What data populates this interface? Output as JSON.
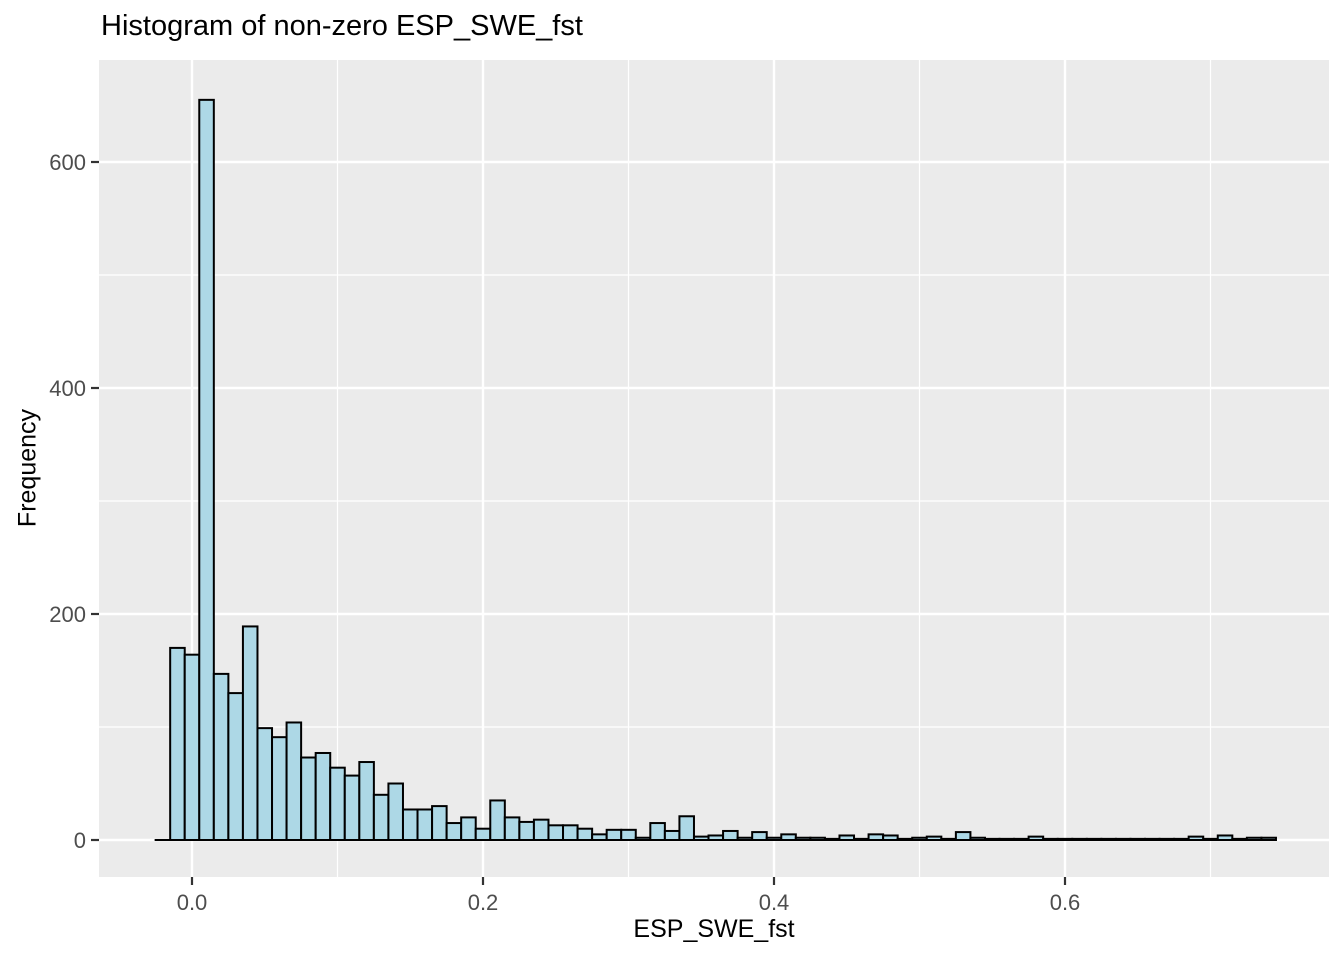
{
  "chart_data": {
    "type": "bar",
    "subtype": "histogram",
    "title": "Histogram of non-zero ESP_SWE_fst",
    "xlabel": "ESP_SWE_fst",
    "ylabel": "Frequency",
    "grid": "on",
    "legend": "none",
    "bin_width": 0.01,
    "bin_centers": [
      -0.02,
      -0.01,
      0.0,
      0.01,
      0.02,
      0.03,
      0.04,
      0.05,
      0.06,
      0.07,
      0.08,
      0.09,
      0.1,
      0.11,
      0.12,
      0.13,
      0.14,
      0.15,
      0.16,
      0.17,
      0.18,
      0.19,
      0.2,
      0.21,
      0.22,
      0.23,
      0.24,
      0.25,
      0.26,
      0.27,
      0.28,
      0.29,
      0.3,
      0.31,
      0.32,
      0.33,
      0.34,
      0.35,
      0.36,
      0.37,
      0.38,
      0.39,
      0.4,
      0.41,
      0.42,
      0.43,
      0.44,
      0.45,
      0.46,
      0.47,
      0.48,
      0.49,
      0.5,
      0.51,
      0.52,
      0.53,
      0.54,
      0.55,
      0.56,
      0.57,
      0.58,
      0.59,
      0.6,
      0.61,
      0.62,
      0.63,
      0.64,
      0.65,
      0.66,
      0.67,
      0.68,
      0.69,
      0.7,
      0.71,
      0.72,
      0.73,
      0.74
    ],
    "frequencies": [
      0,
      170,
      164,
      655,
      147,
      130,
      189,
      99,
      91,
      104,
      73,
      77,
      64,
      57,
      69,
      40,
      50,
      27,
      27,
      30,
      15,
      20,
      10,
      35,
      20,
      16,
      18,
      13,
      13,
      10,
      5,
      9,
      9,
      2,
      15,
      8,
      21,
      3,
      4,
      8,
      2,
      7,
      2,
      5,
      2,
      2,
      1,
      4,
      1,
      5,
      4,
      1,
      2,
      3,
      1,
      7,
      2,
      1,
      1,
      1,
      3,
      1,
      1,
      1,
      1,
      1,
      1,
      1,
      1,
      1,
      1,
      3,
      1,
      4,
      1,
      2,
      2
    ],
    "x_axis": {
      "tick_values": [
        0.0,
        0.2,
        0.4,
        0.6
      ],
      "tick_labels": [
        "0.0",
        "0.2",
        "0.4",
        "0.6"
      ],
      "minor_tick_values": [
        0.1,
        0.3,
        0.5,
        0.7
      ],
      "range_shown": [
        -0.064,
        0.781
      ]
    },
    "y_axis": {
      "tick_values": [
        0,
        200,
        400,
        600
      ],
      "tick_labels": [
        "0",
        "200",
        "400",
        "600"
      ],
      "minor_tick_values": [
        100,
        300,
        500
      ],
      "range_shown": [
        0,
        690
      ]
    },
    "colors": {
      "bar_fill": "#ADD8E6",
      "bar_stroke": "#000000",
      "panel_background": "#EBEBEB",
      "gridline": "#FFFFFF",
      "tick_label_text": "#4D4D4D",
      "tick_mark": "#333333",
      "title_text": "#000000"
    }
  }
}
